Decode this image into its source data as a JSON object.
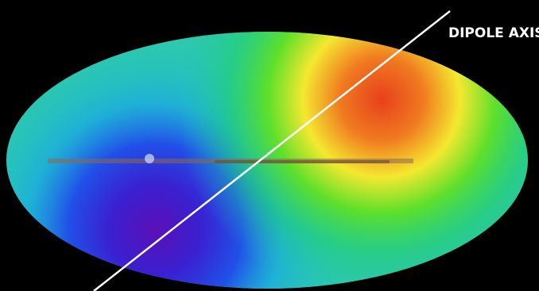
{
  "annotation": {
    "text": "DIPOLE AXIS"
  }
}
